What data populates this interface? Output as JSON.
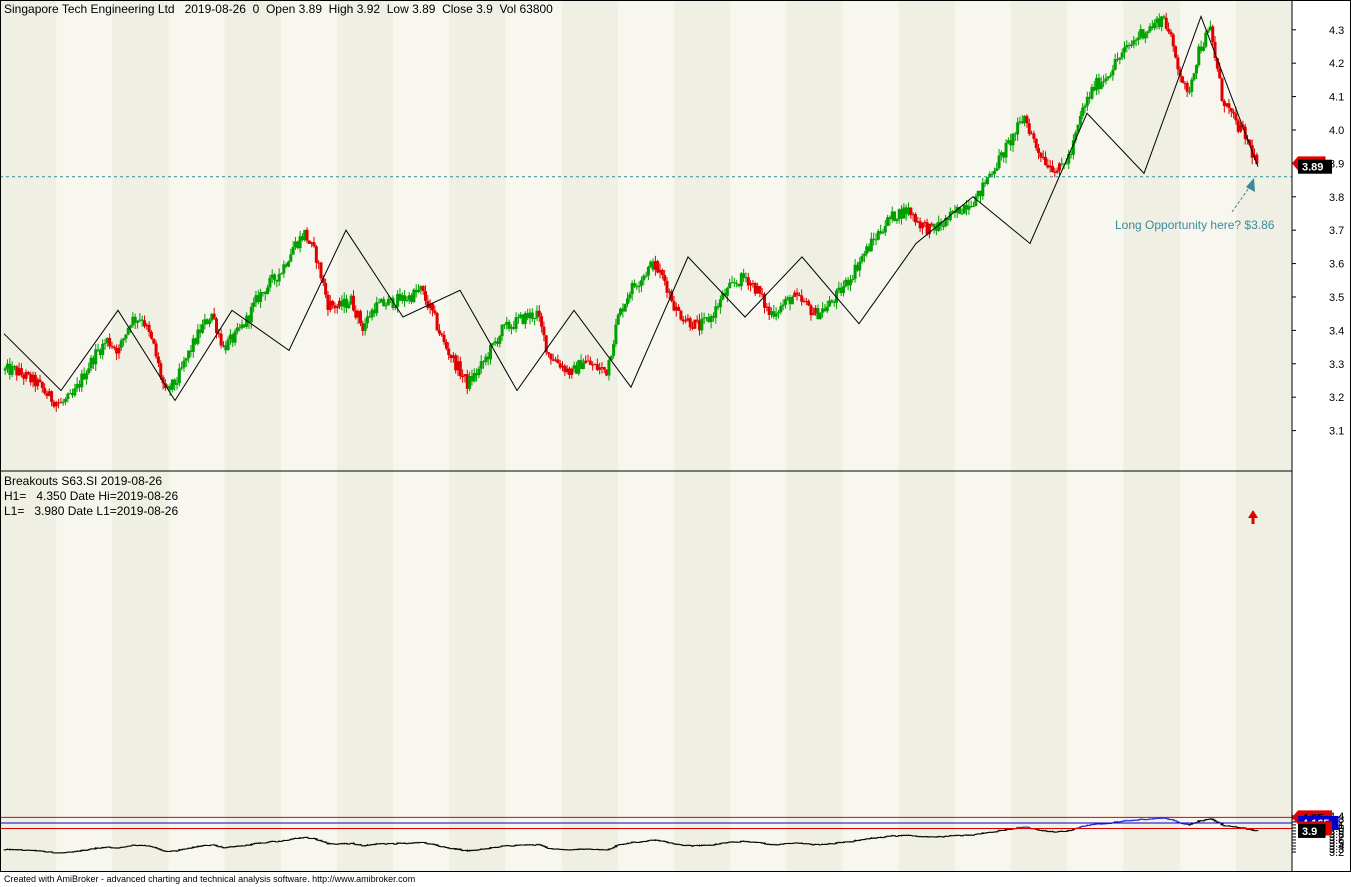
{
  "colors": {
    "background": "#ffffff",
    "band_light": "#f7f7ef",
    "band_dark": "#efefe4",
    "up_candle": "#00a000",
    "down_candle": "#e00000",
    "zigzag": "#000000",
    "support_dashed": "#2f8f8f",
    "hi_line": "#e00000",
    "mid_line": "#0000cc",
    "lo_line": "#e00000",
    "annotation": "#3a8a9a",
    "breakout_up": "#2020e0",
    "price_black": "#000000"
  },
  "header": {
    "title": "Singapore Tech Engineering Ltd   2019-08-26  0  Open 3.89  High 3.92  Low 3.89  Close 3.9  Vol 63800"
  },
  "lower_panel": {
    "line1": "Breakouts S63.SI 2019-08-26",
    "line2": "H1=   4.350 Date Hi=2019-08-26",
    "line3": "L1=   3.980 Date L1=2019-08-26"
  },
  "annotation": {
    "text": "Long Opportunity here? $3.86"
  },
  "footer": {
    "text": "Created with AmiBroker - advanced charting and technical analysis software. http://www.amibroker.com"
  },
  "chart_data": [
    {
      "type": "candlestick",
      "panel": "price",
      "title": "Singapore Tech Engineering Ltd",
      "date": "2019-08-26",
      "ohlcv": {
        "open": 3.89,
        "high": 3.92,
        "low": 3.89,
        "close": 3.9,
        "volume": 63800
      },
      "ylim": [
        3.0,
        4.35
      ],
      "yticks": [
        3.1,
        3.2,
        3.3,
        3.4,
        3.5,
        3.6,
        3.7,
        3.8,
        3.9,
        4.0,
        4.1,
        4.2,
        4.3
      ],
      "series": [
        {
          "name": "Close",
          "values": [
            3.28,
            3.26,
            3.24,
            3.2,
            3.18,
            3.2,
            3.27,
            3.33,
            3.37,
            3.34,
            3.43,
            3.44,
            3.35,
            3.21,
            3.25,
            3.33,
            3.4,
            3.45,
            3.35,
            3.38,
            3.43,
            3.5,
            3.54,
            3.58,
            3.65,
            3.69,
            3.62,
            3.48,
            3.47,
            3.49,
            3.41,
            3.47,
            3.48,
            3.49,
            3.5,
            3.52,
            3.45,
            3.36,
            3.3,
            3.24,
            3.28,
            3.34,
            3.4,
            3.42,
            3.44,
            3.45,
            3.33,
            3.3,
            3.27,
            3.31,
            3.29,
            3.28,
            3.44,
            3.52,
            3.56,
            3.6,
            3.55,
            3.46,
            3.43,
            3.41,
            3.44,
            3.5,
            3.54,
            3.56,
            3.52,
            3.45,
            3.47,
            3.5,
            3.48,
            3.45,
            3.47,
            3.51,
            3.56,
            3.62,
            3.67,
            3.72,
            3.75,
            3.76,
            3.72,
            3.7,
            3.72,
            3.75,
            3.78,
            3.8,
            3.87,
            3.92,
            3.98,
            4.04,
            3.95,
            3.9,
            3.88,
            3.93,
            4.06,
            4.13,
            4.16,
            4.21,
            4.25,
            4.29,
            4.31,
            4.34,
            4.22,
            4.1,
            4.24,
            4.3,
            4.1,
            4.03,
            3.98,
            3.9
          ]
        }
      ],
      "zigzag": [
        3.39,
        3.22,
        3.46,
        3.19,
        3.46,
        3.34,
        3.7,
        3.44,
        3.52,
        3.22,
        3.46,
        3.23,
        3.62,
        3.44,
        3.62,
        3.42,
        3.66,
        3.8,
        3.66,
        4.05,
        3.87,
        4.34,
        3.89
      ],
      "support_line": 3.86,
      "last_close_tag": 3.9,
      "support_tag": 3.89,
      "x_axis": "2018-08 to 2019-08 (no tick labels shown)"
    },
    {
      "type": "line",
      "panel": "breakouts",
      "title": "Breakouts S63.SI 2019-08-26",
      "ylim": [
        3.15,
        4.43
      ],
      "yticks": [
        3.2,
        3.3,
        3.4,
        3.5,
        3.6,
        3.7,
        3.8,
        3.9,
        4.0,
        4.1,
        4.2,
        4.3,
        4.4
      ],
      "H1": 4.35,
      "L1": 3.98,
      "mid": 4.165,
      "tags": [
        4.35,
        4.165,
        3.98,
        3.9
      ],
      "breakout_arrow": "up at 4.35"
    }
  ]
}
